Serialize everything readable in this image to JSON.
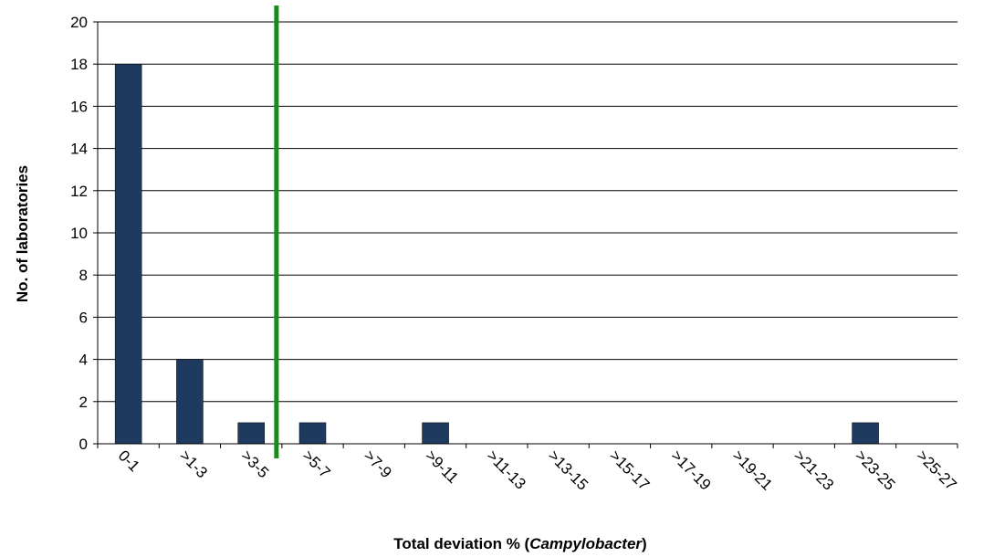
{
  "chart_data": {
    "type": "bar",
    "title": "",
    "xlabel_prefix": "Total deviation % (",
    "xlabel_italic": "Campylobacter",
    "xlabel_suffix": ")",
    "ylabel": "No. of laboratories",
    "categories": [
      "0-1",
      ">1-3",
      ">3-5",
      ">5-7",
      ">7-9",
      ">9-11",
      ">11-13",
      ">13-15",
      ">15-17",
      ">17-19",
      ">19-21",
      ">21-23",
      ">23-25",
      ">25-27"
    ],
    "values": [
      18,
      4,
      1,
      1,
      0,
      1,
      0,
      0,
      0,
      0,
      0,
      0,
      1,
      0
    ],
    "ylim": [
      0,
      20
    ],
    "yticks": [
      0,
      2,
      4,
      6,
      8,
      10,
      12,
      14,
      16,
      18,
      20
    ],
    "grid": true,
    "legend": "none",
    "bar_color": "#1f3a5f",
    "reference_line": {
      "x": 3,
      "color": "#1a8a1a"
    }
  }
}
